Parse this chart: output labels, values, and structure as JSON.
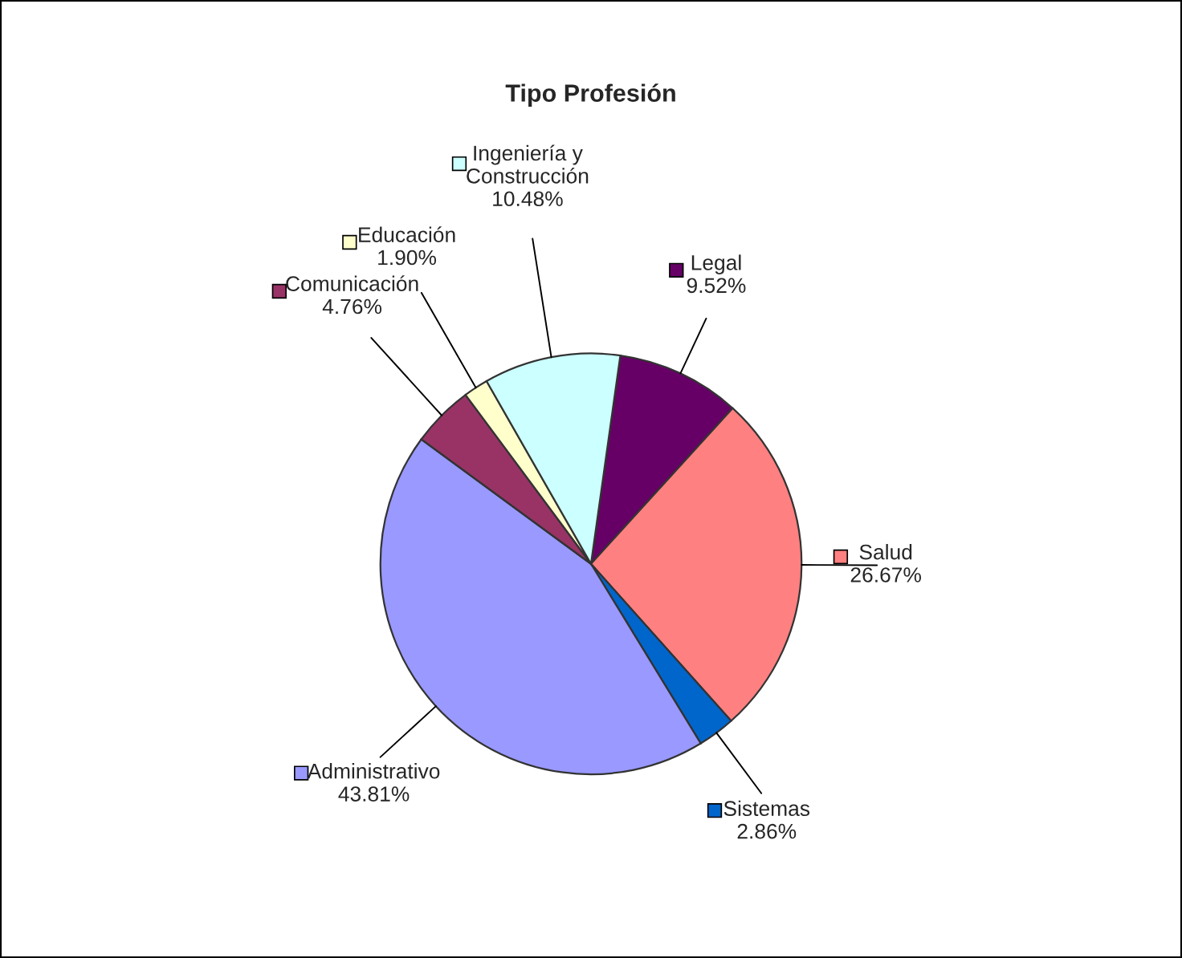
{
  "chart_data": {
    "type": "pie",
    "title": "Tipo Profesión",
    "categories": [
      "Legal",
      "Salud",
      "Sistemas",
      "Administrativo",
      "Comunicación",
      "Educación",
      "Ingeniería y\nConstrucción"
    ],
    "values": [
      9.52,
      26.67,
      2.86,
      43.81,
      4.76,
      1.9,
      10.48
    ],
    "value_labels": [
      "9.52%",
      "26.67%",
      "2.86%",
      "43.81%",
      "4.76%",
      "1.90%",
      "10.48%"
    ],
    "colors": [
      "#660066",
      "#ff8080",
      "#0066cc",
      "#9999ff",
      "#993366",
      "#ffffcc",
      "#ccffff"
    ],
    "legend": true
  }
}
